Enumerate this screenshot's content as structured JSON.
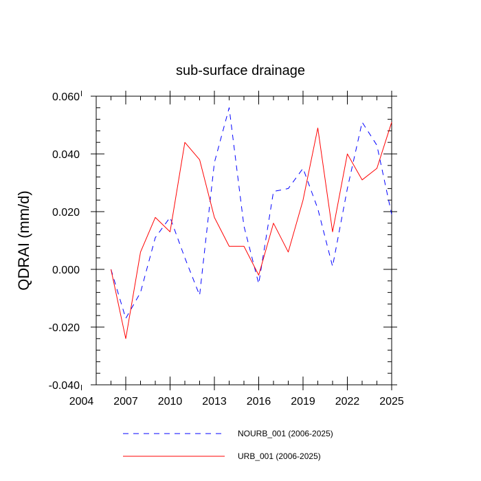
{
  "chart_data": {
    "type": "line",
    "title": "sub-surface drainage",
    "xlabel": "",
    "ylabel": "QDRAI  (mm/d)",
    "xlim": [
      2005,
      2025
    ],
    "ylim": [
      -0.04,
      0.06
    ],
    "x_ticks": [
      2004,
      2007,
      2010,
      2013,
      2016,
      2019,
      2022,
      2025
    ],
    "y_ticks": [
      -0.04,
      -0.02,
      0.0,
      0.02,
      0.04,
      0.06
    ],
    "y_tick_labels": [
      "-0.040",
      "-0.020",
      "0.000",
      "0.020",
      "0.040",
      "0.060"
    ],
    "grid": false,
    "legend_position": "bottom",
    "x": [
      2006,
      2007,
      2008,
      2009,
      2010,
      2011,
      2012,
      2013,
      2014,
      2015,
      2016,
      2017,
      2018,
      2019,
      2020,
      2021,
      2022,
      2023,
      2024,
      2025
    ],
    "series": [
      {
        "name": "NOURB_001 (2006-2025)",
        "color": "#0000ff",
        "dash": "dashed",
        "values": [
          0.0,
          -0.017,
          -0.008,
          0.011,
          0.018,
          0.004,
          -0.009,
          0.037,
          0.056,
          0.015,
          -0.005,
          0.027,
          0.028,
          0.035,
          0.021,
          0.001,
          0.028,
          0.051,
          0.043,
          0.019
        ]
      },
      {
        "name": "URB_001 (2006-2025)",
        "color": "#ff0000",
        "dash": "solid",
        "values": [
          0.0,
          -0.024,
          0.006,
          0.018,
          0.013,
          0.044,
          0.038,
          0.018,
          0.008,
          0.008,
          -0.002,
          0.016,
          0.006,
          0.024,
          0.049,
          0.013,
          0.04,
          0.031,
          0.035,
          0.051
        ]
      }
    ]
  }
}
